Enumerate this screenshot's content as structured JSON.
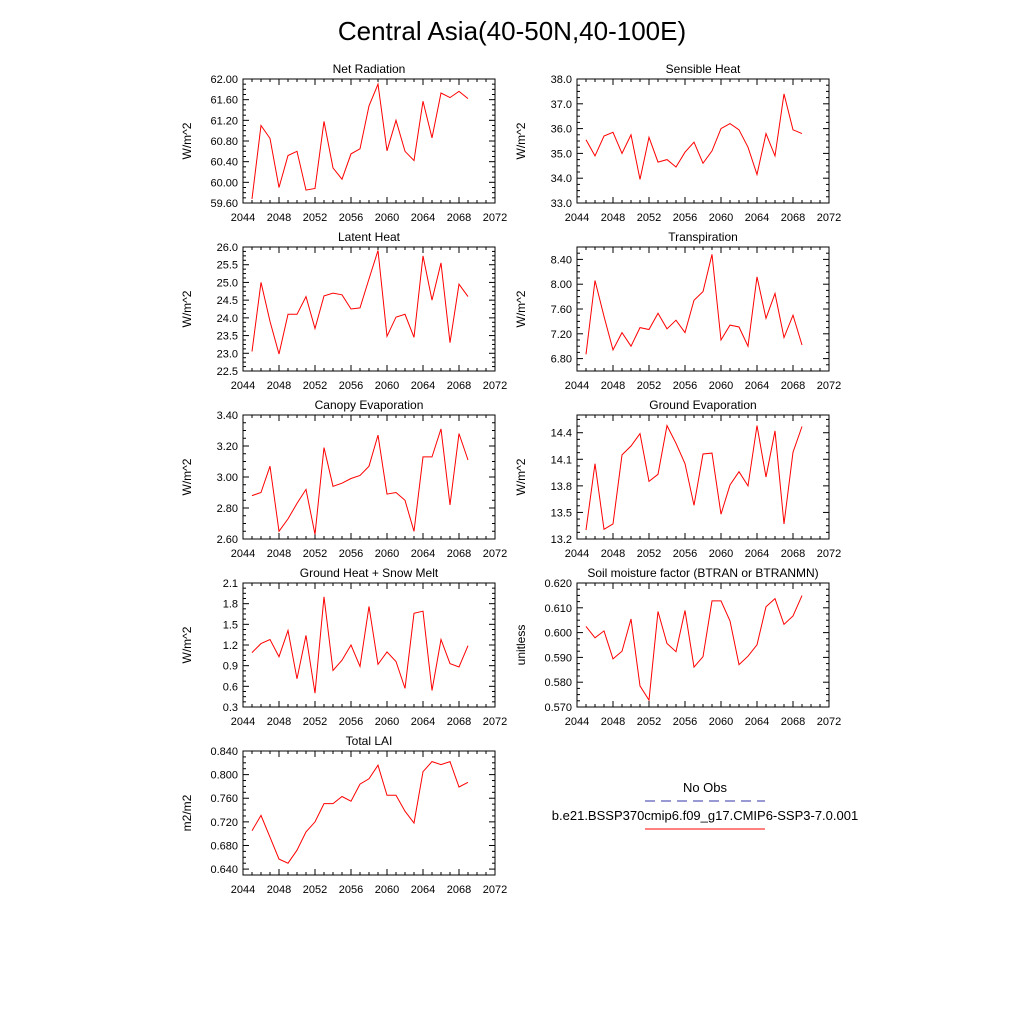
{
  "title": "Central Asia(40-50N,40-100E)",
  "colors": {
    "model_line": "#ff0000",
    "obs_line": "#3333aa",
    "axis": "#000000"
  },
  "legend": {
    "obs_label": "No Obs",
    "model_label": "b.e21.BSSP370cmip6.f09_g17.CMIP6-SSP3-7.0.001"
  },
  "chart_data": [
    {
      "type": "line",
      "title": "Net Radiation",
      "ylabel": "W/m^2",
      "xlim": [
        2044,
        2072
      ],
      "ylim": [
        59.6,
        62.0
      ],
      "xticks": [
        "2044",
        "2048",
        "2052",
        "2056",
        "2060",
        "2064",
        "2068",
        "2072"
      ],
      "yticks": [
        "59.60",
        "60.00",
        "60.40",
        "60.80",
        "61.20",
        "61.60",
        "62.00"
      ],
      "x": [
        2045,
        2046,
        2047,
        2048,
        2049,
        2050,
        2051,
        2052,
        2053,
        2054,
        2055,
        2056,
        2057,
        2058,
        2059,
        2060,
        2061,
        2062,
        2063,
        2064,
        2065,
        2066,
        2067,
        2068,
        2069
      ],
      "series": [
        {
          "values": [
            59.68,
            61.1,
            60.85,
            59.9,
            60.52,
            60.6,
            59.85,
            59.88,
            61.18,
            60.28,
            60.06,
            60.55,
            60.65,
            61.48,
            61.9,
            60.61,
            61.2,
            60.6,
            60.42,
            61.57,
            60.86,
            61.73,
            61.64,
            61.76,
            61.62
          ]
        }
      ]
    },
    {
      "type": "line",
      "title": "Sensible Heat",
      "ylabel": "W/m^2",
      "xlim": [
        2044,
        2072
      ],
      "ylim": [
        33.0,
        38.0
      ],
      "xticks": [
        "2044",
        "2048",
        "2052",
        "2056",
        "2060",
        "2064",
        "2068",
        "2072"
      ],
      "yticks": [
        "33.0",
        "34.0",
        "35.0",
        "36.0",
        "37.0",
        "38.0"
      ],
      "x": [
        2045,
        2046,
        2047,
        2048,
        2049,
        2050,
        2051,
        2052,
        2053,
        2054,
        2055,
        2056,
        2057,
        2058,
        2059,
        2060,
        2061,
        2062,
        2063,
        2064,
        2065,
        2066,
        2067,
        2068,
        2069
      ],
      "series": [
        {
          "values": [
            35.55,
            34.9,
            35.7,
            35.85,
            35.0,
            35.75,
            33.95,
            35.65,
            34.65,
            34.75,
            34.45,
            35.05,
            35.45,
            34.6,
            35.1,
            36.0,
            36.2,
            35.95,
            35.25,
            34.15,
            35.8,
            34.9,
            37.4,
            35.95,
            35.8
          ]
        }
      ]
    },
    {
      "type": "line",
      "title": "Latent Heat",
      "ylabel": "W/m^2",
      "xlim": [
        2044,
        2072
      ],
      "ylim": [
        22.5,
        26.0
      ],
      "xticks": [
        "2044",
        "2048",
        "2052",
        "2056",
        "2060",
        "2064",
        "2068",
        "2072"
      ],
      "yticks": [
        "22.5",
        "23.0",
        "23.5",
        "24.0",
        "24.5",
        "25.0",
        "25.5",
        "26.0"
      ],
      "x": [
        2045,
        2046,
        2047,
        2048,
        2049,
        2050,
        2051,
        2052,
        2053,
        2054,
        2055,
        2056,
        2057,
        2058,
        2059,
        2060,
        2061,
        2062,
        2063,
        2064,
        2065,
        2066,
        2067,
        2068,
        2069
      ],
      "series": [
        {
          "values": [
            23.05,
            25.0,
            23.9,
            22.98,
            24.1,
            24.1,
            24.6,
            23.7,
            24.62,
            24.7,
            24.65,
            24.25,
            24.28,
            25.1,
            25.9,
            23.48,
            24.02,
            24.1,
            23.45,
            25.75,
            24.5,
            25.55,
            23.3,
            24.95,
            24.6
          ]
        }
      ]
    },
    {
      "type": "line",
      "title": "Transpiration",
      "ylabel": "W/m^2",
      "xlim": [
        2044,
        2072
      ],
      "ylim": [
        6.6,
        8.6
      ],
      "xticks": [
        "2044",
        "2048",
        "2052",
        "2056",
        "2060",
        "2064",
        "2068",
        "2072"
      ],
      "yticks": [
        "6.80",
        "7.20",
        "7.60",
        "8.00",
        "8.40"
      ],
      "x": [
        2045,
        2046,
        2047,
        2048,
        2049,
        2050,
        2051,
        2052,
        2053,
        2054,
        2055,
        2056,
        2057,
        2058,
        2059,
        2060,
        2061,
        2062,
        2063,
        2064,
        2065,
        2066,
        2067,
        2068,
        2069
      ],
      "series": [
        {
          "values": [
            6.87,
            8.06,
            7.48,
            6.94,
            7.22,
            7.0,
            7.3,
            7.27,
            7.53,
            7.28,
            7.42,
            7.22,
            7.74,
            7.88,
            8.48,
            7.1,
            7.34,
            7.31,
            7.0,
            8.12,
            7.45,
            7.85,
            7.14,
            7.5,
            7.02
          ]
        }
      ]
    },
    {
      "type": "line",
      "title": "Canopy Evaporation",
      "ylabel": "W/m^2",
      "xlim": [
        2044,
        2072
      ],
      "ylim": [
        2.6,
        3.4
      ],
      "xticks": [
        "2044",
        "2048",
        "2052",
        "2056",
        "2060",
        "2064",
        "2068",
        "2072"
      ],
      "yticks": [
        "2.60",
        "2.80",
        "3.00",
        "3.20",
        "3.40"
      ],
      "x": [
        2045,
        2046,
        2047,
        2048,
        2049,
        2050,
        2051,
        2052,
        2053,
        2054,
        2055,
        2056,
        2057,
        2058,
        2059,
        2060,
        2061,
        2062,
        2063,
        2064,
        2065,
        2066,
        2067,
        2068,
        2069
      ],
      "series": [
        {
          "values": [
            2.88,
            2.9,
            3.07,
            2.65,
            2.73,
            2.83,
            2.92,
            2.63,
            3.19,
            2.94,
            2.96,
            2.99,
            3.01,
            3.07,
            3.27,
            2.89,
            2.9,
            2.85,
            2.65,
            3.13,
            3.13,
            3.31,
            2.82,
            3.28,
            3.11
          ]
        }
      ]
    },
    {
      "type": "line",
      "title": "Ground Evaporation",
      "ylabel": "W/m^2",
      "xlim": [
        2044,
        2072
      ],
      "ylim": [
        13.2,
        14.6
      ],
      "xticks": [
        "2044",
        "2048",
        "2052",
        "2056",
        "2060",
        "2064",
        "2068",
        "2072"
      ],
      "yticks": [
        "13.2",
        "13.5",
        "13.8",
        "14.1",
        "14.4"
      ],
      "x": [
        2045,
        2046,
        2047,
        2048,
        2049,
        2050,
        2051,
        2052,
        2053,
        2054,
        2055,
        2056,
        2057,
        2058,
        2059,
        2060,
        2061,
        2062,
        2063,
        2064,
        2065,
        2066,
        2067,
        2068,
        2069
      ],
      "series": [
        {
          "values": [
            13.3,
            14.05,
            13.31,
            13.37,
            14.15,
            14.25,
            14.39,
            13.85,
            13.93,
            14.48,
            14.28,
            14.05,
            13.58,
            14.16,
            14.17,
            13.48,
            13.81,
            13.96,
            13.8,
            14.48,
            13.9,
            14.42,
            13.37,
            14.18,
            14.47
          ]
        }
      ]
    },
    {
      "type": "line",
      "title": "Ground Heat + Snow Melt",
      "ylabel": "W/m^2",
      "xlim": [
        2044,
        2072
      ],
      "ylim": [
        0.3,
        2.1
      ],
      "xticks": [
        "2044",
        "2048",
        "2052",
        "2056",
        "2060",
        "2064",
        "2068",
        "2072"
      ],
      "yticks": [
        "0.3",
        "0.6",
        "0.9",
        "1.2",
        "1.5",
        "1.8",
        "2.1"
      ],
      "x": [
        2045,
        2046,
        2047,
        2048,
        2049,
        2050,
        2051,
        2052,
        2053,
        2054,
        2055,
        2056,
        2057,
        2058,
        2059,
        2060,
        2061,
        2062,
        2063,
        2064,
        2065,
        2066,
        2067,
        2068,
        2069
      ],
      "series": [
        {
          "values": [
            1.09,
            1.22,
            1.28,
            1.03,
            1.41,
            0.71,
            1.34,
            0.5,
            1.9,
            0.83,
            0.98,
            1.2,
            0.89,
            1.76,
            0.92,
            1.1,
            0.96,
            0.57,
            1.66,
            1.69,
            0.54,
            1.28,
            0.93,
            0.88,
            1.19
          ]
        }
      ]
    },
    {
      "type": "line",
      "title": "Soil moisture factor (BTRAN or BTRANMN)",
      "ylabel": "unitless",
      "xlim": [
        2044,
        2072
      ],
      "ylim": [
        0.57,
        0.62
      ],
      "xticks": [
        "2044",
        "2048",
        "2052",
        "2056",
        "2060",
        "2064",
        "2068",
        "2072"
      ],
      "yticks": [
        "0.570",
        "0.580",
        "0.590",
        "0.600",
        "0.610",
        "0.620"
      ],
      "x": [
        2045,
        2046,
        2047,
        2048,
        2049,
        2050,
        2051,
        2052,
        2053,
        2054,
        2055,
        2056,
        2057,
        2058,
        2059,
        2060,
        2061,
        2062,
        2063,
        2064,
        2065,
        2066,
        2067,
        2068,
        2069
      ],
      "series": [
        {
          "values": [
            0.6025,
            0.5979,
            0.6007,
            0.5894,
            0.5925,
            0.6055,
            0.5785,
            0.5728,
            0.6085,
            0.5956,
            0.5923,
            0.6089,
            0.5861,
            0.5903,
            0.6128,
            0.6128,
            0.6047,
            0.5871,
            0.5905,
            0.5951,
            0.6104,
            0.6137,
            0.6033,
            0.6067,
            0.6149
          ]
        }
      ]
    },
    {
      "type": "line",
      "title": "Total LAI",
      "ylabel": "m2/m2",
      "xlim": [
        2044,
        2072
      ],
      "ylim": [
        0.63,
        0.84
      ],
      "xticks": [
        "2044",
        "2048",
        "2052",
        "2056",
        "2060",
        "2064",
        "2068",
        "2072"
      ],
      "yticks": [
        "0.640",
        "0.680",
        "0.720",
        "0.760",
        "0.800",
        "0.840"
      ],
      "x": [
        2045,
        2046,
        2047,
        2048,
        2049,
        2050,
        2051,
        2052,
        2053,
        2054,
        2055,
        2056,
        2057,
        2058,
        2059,
        2060,
        2061,
        2062,
        2063,
        2064,
        2065,
        2066,
        2067,
        2068,
        2069
      ],
      "series": [
        {
          "values": [
            0.705,
            0.731,
            0.694,
            0.657,
            0.65,
            0.672,
            0.703,
            0.72,
            0.751,
            0.751,
            0.763,
            0.755,
            0.784,
            0.793,
            0.816,
            0.765,
            0.765,
            0.738,
            0.718,
            0.805,
            0.822,
            0.817,
            0.822,
            0.779,
            0.787
          ]
        }
      ]
    }
  ]
}
